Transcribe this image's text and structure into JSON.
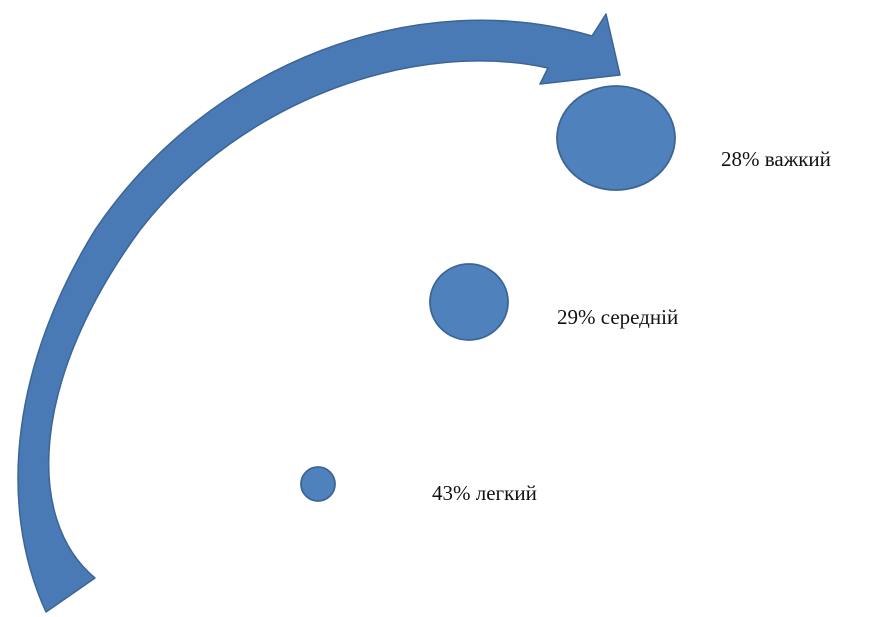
{
  "colors": {
    "fill": "#4f81bd",
    "stroke": "#3b6594",
    "arrow_fill": "#4a7ab5"
  },
  "levels": [
    {
      "id": "heavy",
      "percent": 28,
      "label": "28% важкий"
    },
    {
      "id": "medium",
      "percent": 29,
      "label": "29% середній"
    },
    {
      "id": "light",
      "percent": 43,
      "label": "43% легкий"
    }
  ]
}
